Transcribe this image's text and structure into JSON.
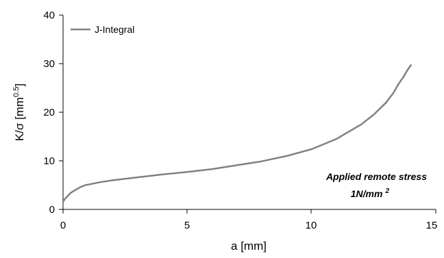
{
  "chart_data": {
    "type": "line",
    "title": "",
    "xlabel": "a [mm]",
    "ylabel_base": "K/σ [mm",
    "ylabel_sup": "0.5",
    "ylabel_close": "]",
    "xlim": [
      0,
      15
    ],
    "ylim": [
      0,
      40
    ],
    "x_ticks": [
      "0",
      "5",
      "10",
      "15"
    ],
    "y_ticks": [
      "0",
      "10",
      "20",
      "30",
      "40"
    ],
    "grid": false,
    "legend_position": "top-left",
    "annotation": {
      "line1": "Applied remote stress",
      "line2": "1N/mm",
      "line2_sup": "2"
    },
    "series": [
      {
        "name": "J-Integral",
        "color": "#808080",
        "x": [
          0,
          0.1,
          0.2,
          0.3,
          0.5,
          0.7,
          0.9,
          1.0,
          1.5,
          2.0,
          3.0,
          4.0,
          5.0,
          6.0,
          7.0,
          8.0,
          9.0,
          10.0,
          11.0,
          12.0,
          12.5,
          13.0,
          13.3,
          13.5,
          13.7,
          13.85,
          14.0
        ],
        "y": [
          1.6,
          2.3,
          2.8,
          3.4,
          4.0,
          4.6,
          5.0,
          5.1,
          5.6,
          6.0,
          6.6,
          7.2,
          7.7,
          8.3,
          9.1,
          9.9,
          11.0,
          12.4,
          14.5,
          17.5,
          19.5,
          22.0,
          24.0,
          25.8,
          27.3,
          28.6,
          29.7
        ]
      }
    ]
  }
}
